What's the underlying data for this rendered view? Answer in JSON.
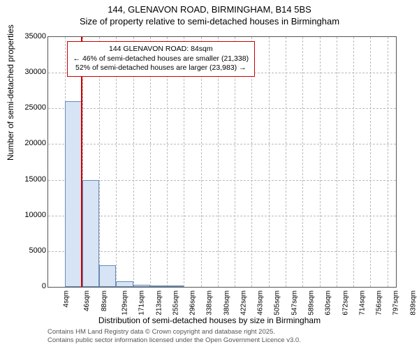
{
  "title_main": "144, GLENAVON ROAD, BIRMINGHAM, B14 5BS",
  "title_sub": "Size of property relative to semi-detached houses in Birmingham",
  "ylabel": "Number of semi-detached properties",
  "xlabel": "Distribution of semi-detached houses by size in Birmingham",
  "chart": {
    "type": "histogram",
    "xlim": [
      4,
      860
    ],
    "ylim": [
      0,
      35000
    ],
    "ytick_step": 5000,
    "xtick_labels": [
      "4sqm",
      "46sqm",
      "88sqm",
      "129sqm",
      "171sqm",
      "213sqm",
      "255sqm",
      "296sqm",
      "338sqm",
      "380sqm",
      "422sqm",
      "463sqm",
      "505sqm",
      "547sqm",
      "589sqm",
      "630sqm",
      "672sqm",
      "714sqm",
      "756sqm",
      "797sqm",
      "839sqm"
    ],
    "xtick_values": [
      4,
      46,
      88,
      129,
      171,
      213,
      255,
      296,
      338,
      380,
      422,
      463,
      505,
      547,
      589,
      630,
      672,
      714,
      756,
      797,
      839
    ],
    "bars": [
      {
        "x0": 46,
        "x1": 88,
        "y": 26000
      },
      {
        "x0": 88,
        "x1": 129,
        "y": 15000
      },
      {
        "x0": 129,
        "x1": 171,
        "y": 3000
      },
      {
        "x0": 171,
        "x1": 213,
        "y": 800
      },
      {
        "x0": 213,
        "x1": 255,
        "y": 300
      },
      {
        "x0": 255,
        "x1": 296,
        "y": 150
      },
      {
        "x0": 296,
        "x1": 338,
        "y": 80
      }
    ],
    "bar_fill": "#d6e4f5",
    "bar_border": "#6a8bb5",
    "grid_color": "#bbbbbb",
    "background_color": "#ffffff",
    "marker_x": 84,
    "marker_color": "#cc0000",
    "annotation": {
      "line1": "144 GLENAVON ROAD: 84sqm",
      "line2": "← 46% of semi-detached houses are smaller (21,338)",
      "line3": "52% of semi-detached houses are larger (23,983) →"
    }
  },
  "credits": {
    "line1": "Contains HM Land Registry data © Crown copyright and database right 2025.",
    "line2": "Contains public sector information licensed under the Open Government Licence v3.0."
  }
}
